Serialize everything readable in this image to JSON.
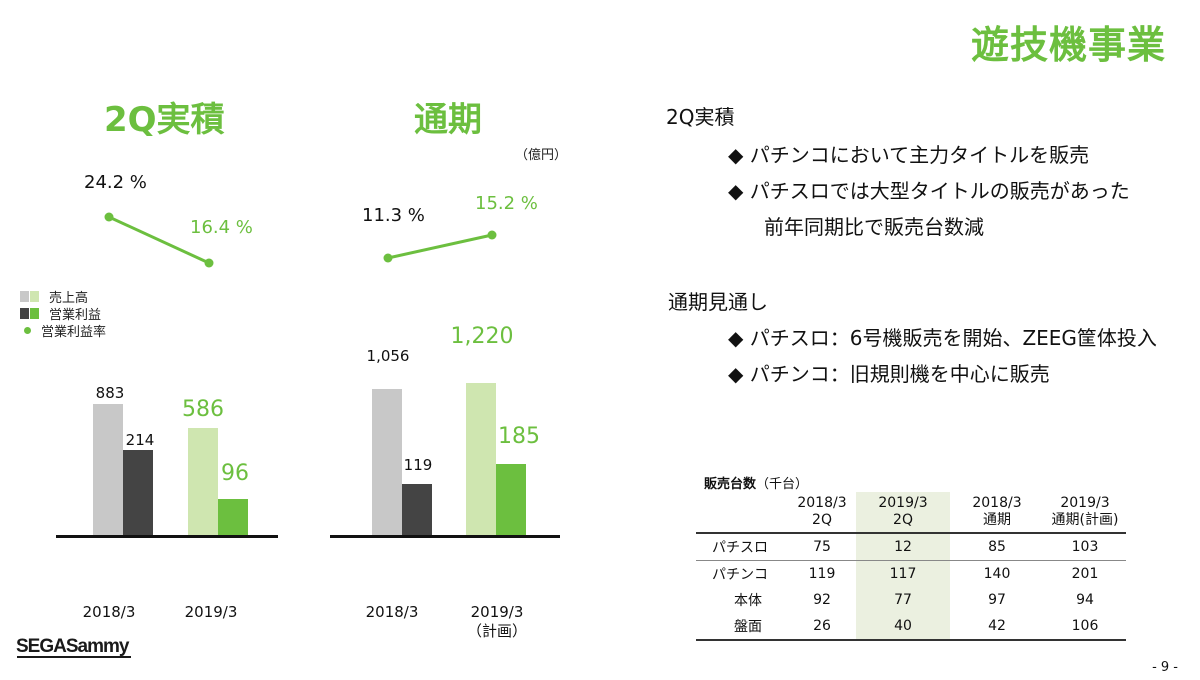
{
  "page_title": "遊技機事業",
  "left_chart": {
    "title": "2Q実積",
    "rates": [
      "24.2 %",
      "16.4 %"
    ],
    "categories": [
      "2018/3",
      "2019/3"
    ],
    "sales_labels": [
      "883",
      "586"
    ],
    "profit_labels": [
      "214",
      "96"
    ]
  },
  "right_chart": {
    "title": "通期",
    "unit": "（億円）",
    "rates": [
      "11.3 %",
      "15.2 %"
    ],
    "category_1": "2018/3",
    "category_2_line1": "2019/3",
    "category_2_line2": "（計画）",
    "sales_labels": [
      "1,056",
      "1,220"
    ],
    "profit_labels": [
      "119",
      "185"
    ]
  },
  "legend": {
    "sales": "売上高",
    "profit": "営業利益",
    "rate": "営業利益率"
  },
  "colors": {
    "accent_green": "#6cbf3f",
    "sales_gray": "#c8c8c8",
    "profit_dark": "#444444",
    "plan_sales_green": "#cfe6b0",
    "plan_profit_green": "#6cbf3f"
  },
  "chart_data": [
    {
      "type": "bar",
      "title": "2Q実積",
      "categories": [
        "2018/3",
        "2019/3"
      ],
      "series": [
        {
          "name": "売上高",
          "values": [
            883,
            586
          ]
        },
        {
          "name": "営業利益",
          "values": [
            214,
            96
          ]
        }
      ],
      "line_series": {
        "name": "営業利益率",
        "values": [
          24.2,
          16.4
        ]
      }
    },
    {
      "type": "bar",
      "title": "通期",
      "categories": [
        "2018/3",
        "2019/3（計画）"
      ],
      "series": [
        {
          "name": "売上高",
          "values": [
            1056,
            1220
          ]
        },
        {
          "name": "営業利益",
          "values": [
            119,
            185
          ]
        }
      ],
      "line_series": {
        "name": "営業利益率",
        "values": [
          11.3,
          15.2
        ]
      }
    }
  ],
  "text": {
    "heading_1": "2Q実積",
    "bullets_1": [
      "◆ パチンコにおいて主力タイトルを販売",
      "◆ パチスロでは大型タイトルの販売があった",
      "前年同期比で販売台数減"
    ],
    "heading_2": "通期見通し",
    "bullets_2": [
      "◆ パチスロ：6号機販売を開始、ZEEG筐体投入",
      "◆ パチンコ：旧規則機を中心に販売"
    ]
  },
  "table": {
    "title": "販売台数",
    "unit": "（千台）",
    "headers": [
      [
        "2018/3",
        "2Q"
      ],
      [
        "2019/3",
        "2Q"
      ],
      [
        "2018/3",
        "通期"
      ],
      [
        "2019/3",
        "通期(計画)"
      ]
    ],
    "rows": [
      {
        "label": "パチスロ",
        "values": [
          "75",
          "12",
          "85",
          "103"
        ]
      },
      {
        "label": "パチンコ",
        "values": [
          "119",
          "117",
          "140",
          "201"
        ]
      },
      {
        "label": "本体",
        "values": [
          "92",
          "77",
          "97",
          "94"
        ]
      },
      {
        "label": "盤面",
        "values": [
          "26",
          "40",
          "42",
          "106"
        ]
      }
    ]
  },
  "logo": "SEGASammy",
  "page_number": "- 9 -"
}
